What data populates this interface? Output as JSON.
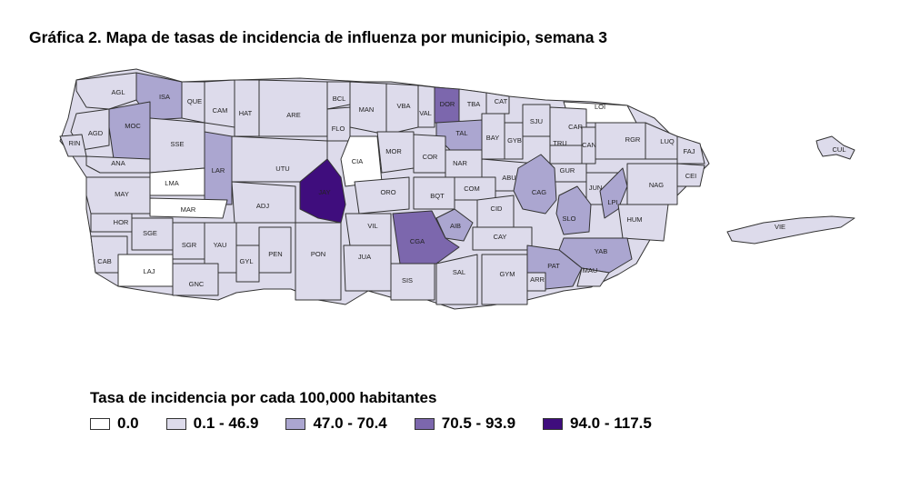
{
  "title": "Gráfica 2. Mapa de tasas de incidencia de influenza por municipio, semana 3",
  "legend": {
    "title": "Tasa de incidencia por cada 100,000 habitantes",
    "items": [
      {
        "label": "0.0",
        "color": "#ffffff"
      },
      {
        "label": "0.1 - 46.9",
        "color": "#dddbeb"
      },
      {
        "label": "47.0 - 70.4",
        "color": "#aba6d0"
      },
      {
        "label": "70.5 - 93.9",
        "color": "#7c67ad"
      },
      {
        "label": "94.0 - 117.5",
        "color": "#3f0d7d"
      }
    ]
  },
  "municipalities": [
    {
      "code": "AGL",
      "cls": 1
    },
    {
      "code": "ISA",
      "cls": 2
    },
    {
      "code": "QUE",
      "cls": 1
    },
    {
      "code": "CAM",
      "cls": 1
    },
    {
      "code": "HAT",
      "cls": 1
    },
    {
      "code": "ARE",
      "cls": 1
    },
    {
      "code": "BCL",
      "cls": 1
    },
    {
      "code": "MAN",
      "cls": 1
    },
    {
      "code": "VBA",
      "cls": 1
    },
    {
      "code": "VAL",
      "cls": 1
    },
    {
      "code": "DOR",
      "cls": 3
    },
    {
      "code": "TBA",
      "cls": 1
    },
    {
      "code": "CAT",
      "cls": 1
    },
    {
      "code": "LOI",
      "cls": 0
    },
    {
      "code": "MOC",
      "cls": 2
    },
    {
      "code": "AGD",
      "cls": 1
    },
    {
      "code": "RIN",
      "cls": 1
    },
    {
      "code": "SSE",
      "cls": 1
    },
    {
      "code": "LAR",
      "cls": 2
    },
    {
      "code": "FLO",
      "cls": 1
    },
    {
      "code": "TAL",
      "cls": 2
    },
    {
      "code": "BAY",
      "cls": 1
    },
    {
      "code": "GYB",
      "cls": 1
    },
    {
      "code": "SJU",
      "cls": 1
    },
    {
      "code": "CAR",
      "cls": 1
    },
    {
      "code": "RGR",
      "cls": 1
    },
    {
      "code": "LUQ",
      "cls": 1
    },
    {
      "code": "FAJ",
      "cls": 1
    },
    {
      "code": "CUL",
      "cls": 1
    },
    {
      "code": "TRU",
      "cls": 1
    },
    {
      "code": "CAN",
      "cls": 1
    },
    {
      "code": "ANA",
      "cls": 1
    },
    {
      "code": "UTU",
      "cls": 1
    },
    {
      "code": "CIA",
      "cls": 0
    },
    {
      "code": "MOR",
      "cls": 1
    },
    {
      "code": "COR",
      "cls": 1
    },
    {
      "code": "NAR",
      "cls": 1
    },
    {
      "code": "GUR",
      "cls": 1
    },
    {
      "code": "CEI",
      "cls": 1
    },
    {
      "code": "LMA",
      "cls": 0
    },
    {
      "code": "ABU",
      "cls": 1
    },
    {
      "code": "JUN",
      "cls": 1
    },
    {
      "code": "NAG",
      "cls": 1
    },
    {
      "code": "MAY",
      "cls": 1
    },
    {
      "code": "JAY",
      "cls": 4
    },
    {
      "code": "ORO",
      "cls": 1
    },
    {
      "code": "BQT",
      "cls": 1
    },
    {
      "code": "COM",
      "cls": 1
    },
    {
      "code": "CAG",
      "cls": 2
    },
    {
      "code": "LPI",
      "cls": 2
    },
    {
      "code": "MAR",
      "cls": 0
    },
    {
      "code": "ADJ",
      "cls": 1
    },
    {
      "code": "CID",
      "cls": 1
    },
    {
      "code": "SLO",
      "cls": 2
    },
    {
      "code": "HUM",
      "cls": 1
    },
    {
      "code": "HOR",
      "cls": 1
    },
    {
      "code": "VIL",
      "cls": 1
    },
    {
      "code": "AIB",
      "cls": 2
    },
    {
      "code": "CGA",
      "cls": 3
    },
    {
      "code": "SGE",
      "cls": 1
    },
    {
      "code": "SGR",
      "cls": 1
    },
    {
      "code": "YAU",
      "cls": 1
    },
    {
      "code": "PEN",
      "cls": 1
    },
    {
      "code": "PON",
      "cls": 1
    },
    {
      "code": "JUA",
      "cls": 1
    },
    {
      "code": "CAY",
      "cls": 1
    },
    {
      "code": "YAB",
      "cls": 2
    },
    {
      "code": "VIE",
      "cls": 1
    },
    {
      "code": "CAB",
      "cls": 1
    },
    {
      "code": "GYL",
      "cls": 1
    },
    {
      "code": "PAT",
      "cls": 2
    },
    {
      "code": "MAU",
      "cls": 1
    },
    {
      "code": "LAJ",
      "cls": 0
    },
    {
      "code": "SAL",
      "cls": 1
    },
    {
      "code": "GYM",
      "cls": 1
    },
    {
      "code": "SIS",
      "cls": 1
    },
    {
      "code": "ARR",
      "cls": 1
    },
    {
      "code": "GNC",
      "cls": 1
    }
  ]
}
